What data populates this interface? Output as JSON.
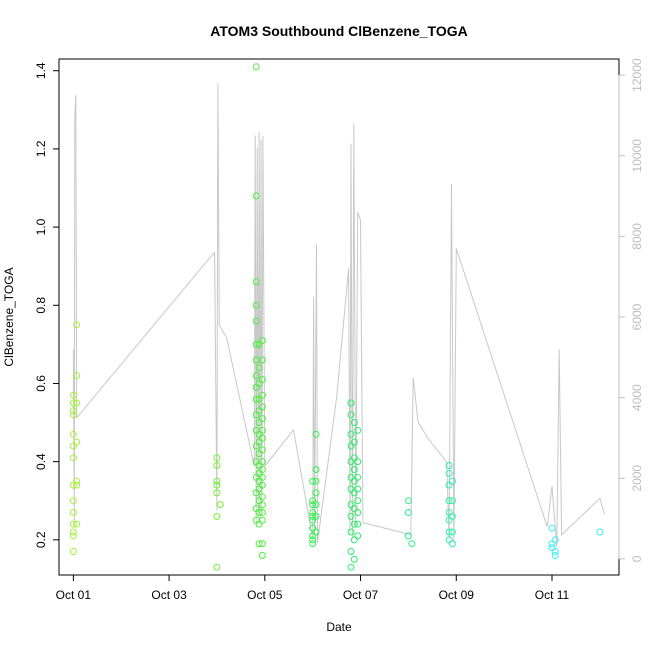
{
  "chart_data": {
    "type": "scatter",
    "title": "ATOM3 Southbound ClBenzene_TOGA",
    "xlabel": "Date",
    "ylabel": "ClBenzene_TOGA",
    "x_ticks": [
      "Oct 01",
      "Oct 03",
      "Oct 05",
      "Oct 07",
      "Oct 09",
      "Oct 11"
    ],
    "x_tick_values": [
      1,
      3,
      5,
      7,
      9,
      11
    ],
    "xlim": [
      0.7,
      12.4
    ],
    "ylim": [
      0.11,
      1.43
    ],
    "y_ticks": [
      0.2,
      0.4,
      0.6,
      0.8,
      1.0,
      1.2,
      1.4
    ],
    "y_tick_labels": [
      "0.2",
      "0.4",
      "0.6",
      "0.8",
      "1.0",
      "1.2",
      "1.4"
    ],
    "right_axis": {
      "ylim": [
        -400,
        12400
      ],
      "ticks": [
        0,
        2000,
        4000,
        6000,
        8000,
        10000,
        12000
      ],
      "tick_labels": [
        "0",
        "2000",
        "4000",
        "6000",
        "8000",
        "10000",
        "12000"
      ],
      "color": "#bebebe"
    },
    "grid": false,
    "legend": "none",
    "colors": {
      "day1": "#a6f03c",
      "day4": "#6ff032",
      "day5": "#4af03a",
      "day6": "#2ff050",
      "day7": "#2af06a",
      "day8": "#2af08c",
      "day9": "#2af0a8",
      "day11": "#3cf0f0",
      "altitude_line": "#c8c8c8"
    },
    "series": [
      {
        "values": [
          [
            1.0,
            0.57
          ],
          [
            1.0,
            0.55
          ],
          [
            1.0,
            0.53
          ],
          [
            1.0,
            0.52
          ],
          [
            1.0,
            0.47
          ],
          [
            1.0,
            0.44
          ],
          [
            1.0,
            0.41
          ],
          [
            1.0,
            0.34
          ],
          [
            1.0,
            0.3
          ],
          [
            1.0,
            0.27
          ],
          [
            1.0,
            0.24
          ],
          [
            1.0,
            0.22
          ],
          [
            1.0,
            0.21
          ],
          [
            1.0,
            0.17
          ],
          [
            1.07,
            0.75
          ],
          [
            1.07,
            0.62
          ],
          [
            1.07,
            0.55
          ],
          [
            1.07,
            0.45
          ],
          [
            1.07,
            0.35
          ],
          [
            1.07,
            0.34
          ],
          [
            1.07,
            0.24
          ],
          [
            4.0,
            0.41
          ],
          [
            4.0,
            0.39
          ],
          [
            4.0,
            0.35
          ],
          [
            4.0,
            0.34
          ],
          [
            4.0,
            0.32
          ],
          [
            4.0,
            0.26
          ],
          [
            4.0,
            0.13
          ],
          [
            4.07,
            0.29
          ],
          [
            4.82,
            1.41
          ],
          [
            4.82,
            1.08
          ],
          [
            4.82,
            0.86
          ],
          [
            4.82,
            0.8
          ],
          [
            4.82,
            0.76
          ],
          [
            4.82,
            0.7
          ],
          [
            4.82,
            0.66
          ],
          [
            4.82,
            0.62
          ],
          [
            4.82,
            0.59
          ],
          [
            4.82,
            0.56
          ],
          [
            4.82,
            0.52
          ],
          [
            4.82,
            0.48
          ],
          [
            4.82,
            0.44
          ],
          [
            4.82,
            0.4
          ],
          [
            4.82,
            0.36
          ],
          [
            4.82,
            0.32
          ],
          [
            4.82,
            0.28
          ],
          [
            4.82,
            0.25
          ],
          [
            4.88,
            0.7
          ],
          [
            4.88,
            0.64
          ],
          [
            4.88,
            0.6
          ],
          [
            4.88,
            0.56
          ],
          [
            4.88,
            0.53
          ],
          [
            4.88,
            0.5
          ],
          [
            4.88,
            0.47
          ],
          [
            4.88,
            0.45
          ],
          [
            4.88,
            0.42
          ],
          [
            4.88,
            0.39
          ],
          [
            4.88,
            0.37
          ],
          [
            4.88,
            0.35
          ],
          [
            4.88,
            0.33
          ],
          [
            4.88,
            0.3
          ],
          [
            4.88,
            0.27
          ],
          [
            4.88,
            0.24
          ],
          [
            4.88,
            0.19
          ],
          [
            4.95,
            0.71
          ],
          [
            4.95,
            0.66
          ],
          [
            4.95,
            0.61
          ],
          [
            4.95,
            0.57
          ],
          [
            4.95,
            0.54
          ],
          [
            4.95,
            0.51
          ],
          [
            4.95,
            0.48
          ],
          [
            4.95,
            0.46
          ],
          [
            4.95,
            0.43
          ],
          [
            4.95,
            0.4
          ],
          [
            4.95,
            0.38
          ],
          [
            4.95,
            0.36
          ],
          [
            4.95,
            0.34
          ],
          [
            4.95,
            0.31
          ],
          [
            4.95,
            0.29
          ],
          [
            4.95,
            0.27
          ],
          [
            4.95,
            0.25
          ],
          [
            4.95,
            0.19
          ],
          [
            4.95,
            0.16
          ],
          [
            6.0,
            0.35
          ],
          [
            6.0,
            0.3
          ],
          [
            6.0,
            0.29
          ],
          [
            6.0,
            0.27
          ],
          [
            6.0,
            0.26
          ],
          [
            6.0,
            0.25
          ],
          [
            6.0,
            0.23
          ],
          [
            6.0,
            0.21
          ],
          [
            6.0,
            0.2
          ],
          [
            6.0,
            0.19
          ],
          [
            6.07,
            0.47
          ],
          [
            6.07,
            0.38
          ],
          [
            6.07,
            0.35
          ],
          [
            6.07,
            0.32
          ],
          [
            6.07,
            0.29
          ],
          [
            6.07,
            0.26
          ],
          [
            6.07,
            0.22
          ],
          [
            6.8,
            0.55
          ],
          [
            6.8,
            0.52
          ],
          [
            6.8,
            0.47
          ],
          [
            6.8,
            0.44
          ],
          [
            6.8,
            0.4
          ],
          [
            6.8,
            0.36
          ],
          [
            6.8,
            0.33
          ],
          [
            6.8,
            0.29
          ],
          [
            6.8,
            0.26
          ],
          [
            6.8,
            0.22
          ],
          [
            6.8,
            0.17
          ],
          [
            6.8,
            0.13
          ],
          [
            6.87,
            0.5
          ],
          [
            6.87,
            0.45
          ],
          [
            6.87,
            0.41
          ],
          [
            6.87,
            0.38
          ],
          [
            6.87,
            0.35
          ],
          [
            6.87,
            0.32
          ],
          [
            6.87,
            0.28
          ],
          [
            6.87,
            0.24
          ],
          [
            6.87,
            0.2
          ],
          [
            6.87,
            0.15
          ],
          [
            6.94,
            0.48
          ],
          [
            6.94,
            0.4
          ],
          [
            6.94,
            0.36
          ],
          [
            6.94,
            0.33
          ],
          [
            6.94,
            0.3
          ],
          [
            6.94,
            0.27
          ],
          [
            6.94,
            0.24
          ],
          [
            6.94,
            0.21
          ],
          [
            8.0,
            0.3
          ],
          [
            8.0,
            0.27
          ],
          [
            8.0,
            0.21
          ],
          [
            8.07,
            0.19
          ],
          [
            8.85,
            0.39
          ],
          [
            8.85,
            0.37
          ],
          [
            8.85,
            0.34
          ],
          [
            8.85,
            0.3
          ],
          [
            8.85,
            0.27
          ],
          [
            8.85,
            0.25
          ],
          [
            8.85,
            0.22
          ],
          [
            8.85,
            0.2
          ],
          [
            8.92,
            0.35
          ],
          [
            8.92,
            0.3
          ],
          [
            8.92,
            0.26
          ],
          [
            8.92,
            0.22
          ],
          [
            8.92,
            0.19
          ],
          [
            11.0,
            0.23
          ],
          [
            11.0,
            0.19
          ],
          [
            11.0,
            0.18
          ],
          [
            11.07,
            0.2
          ],
          [
            11.07,
            0.17
          ],
          [
            11.07,
            0.16
          ],
          [
            12.0,
            0.22
          ]
        ]
      },
      {
        "axis": "right",
        "values": [
          [
            1.0,
            4000
          ],
          [
            1.0,
            5200
          ],
          [
            1.02,
            800
          ],
          [
            1.03,
            11000
          ],
          [
            1.05,
            11500
          ],
          [
            1.07,
            3500
          ],
          [
            3.8,
            7400
          ],
          [
            3.95,
            7600
          ],
          [
            4.0,
            1200
          ],
          [
            4.02,
            11800
          ],
          [
            4.05,
            5800
          ],
          [
            4.2,
            5500
          ],
          [
            4.78,
            2300
          ],
          [
            4.8,
            10500
          ],
          [
            4.82,
            800
          ],
          [
            4.84,
            10200
          ],
          [
            4.86,
            1000
          ],
          [
            4.88,
            10600
          ],
          [
            4.9,
            900
          ],
          [
            4.92,
            10400
          ],
          [
            4.94,
            1100
          ],
          [
            4.96,
            10500
          ],
          [
            5.0,
            2300
          ],
          [
            5.6,
            3200
          ],
          [
            6.0,
            500
          ],
          [
            6.02,
            6500
          ],
          [
            6.04,
            600
          ],
          [
            6.08,
            7800
          ],
          [
            6.1,
            400
          ],
          [
            6.5,
            4000
          ],
          [
            6.75,
            7200
          ],
          [
            6.78,
            600
          ],
          [
            6.8,
            10300
          ],
          [
            6.83,
            500
          ],
          [
            6.86,
            10800
          ],
          [
            6.9,
            800
          ],
          [
            6.94,
            8600
          ],
          [
            7.0,
            8400
          ],
          [
            7.05,
            900
          ],
          [
            8.05,
            600
          ],
          [
            8.1,
            4500
          ],
          [
            8.2,
            3400
          ],
          [
            8.4,
            3000
          ],
          [
            8.8,
            2400
          ],
          [
            8.85,
            500
          ],
          [
            8.9,
            9300
          ],
          [
            8.95,
            400
          ],
          [
            9.0,
            7700
          ],
          [
            10.9,
            800
          ],
          [
            11.0,
            1800
          ],
          [
            11.1,
            300
          ],
          [
            11.15,
            5200
          ],
          [
            11.2,
            600
          ],
          [
            12.0,
            1500
          ],
          [
            12.1,
            1100
          ]
        ]
      }
    ]
  }
}
